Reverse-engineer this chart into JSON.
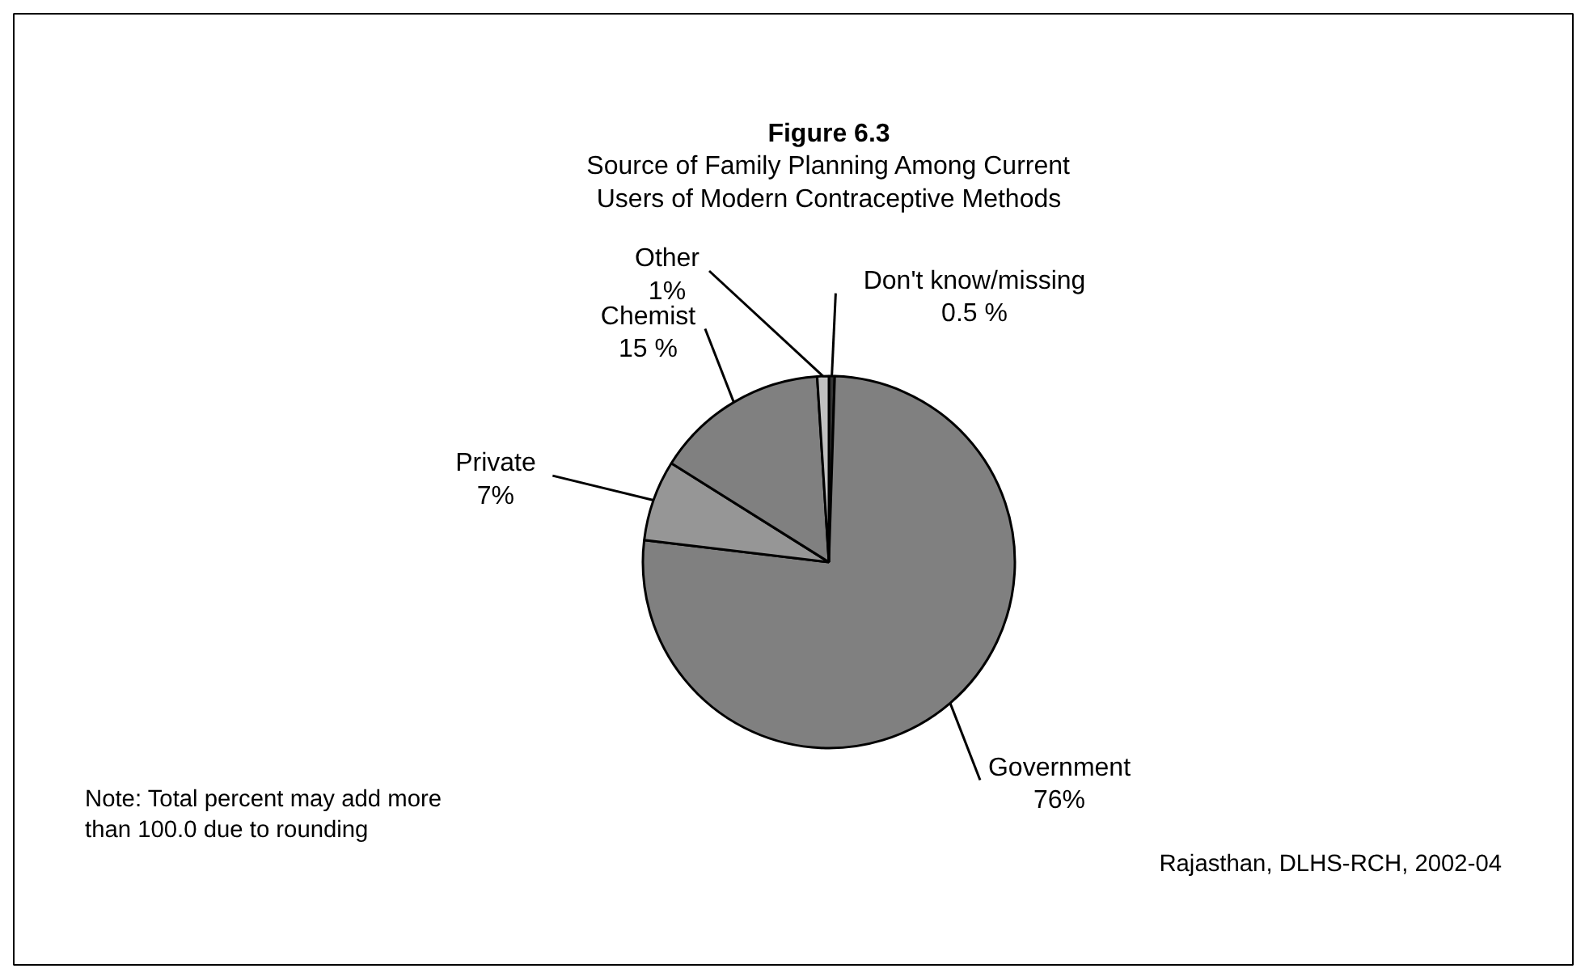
{
  "chart_data": {
    "type": "pie",
    "title": "Figure 6.3",
    "subtitle": "Source of Family Planning Among Current\nUsers of Modern Contraceptive Methods",
    "categories": [
      "Don't know/missing",
      "Government",
      "Private",
      "Chemist",
      "Other"
    ],
    "values": [
      0.5,
      76,
      7,
      15,
      1
    ],
    "value_labels": [
      "0.5 %",
      "76%",
      "7%",
      "15 %",
      "1%"
    ],
    "colors": [
      "#333333",
      "#808080",
      "#969696",
      "#808080",
      "#c0c0c0"
    ],
    "annotations": [
      "Note: Total percent may add more\nthan 100.0 due to rounding",
      "Rajasthan, DLHS-RCH, 2002-04"
    ]
  }
}
